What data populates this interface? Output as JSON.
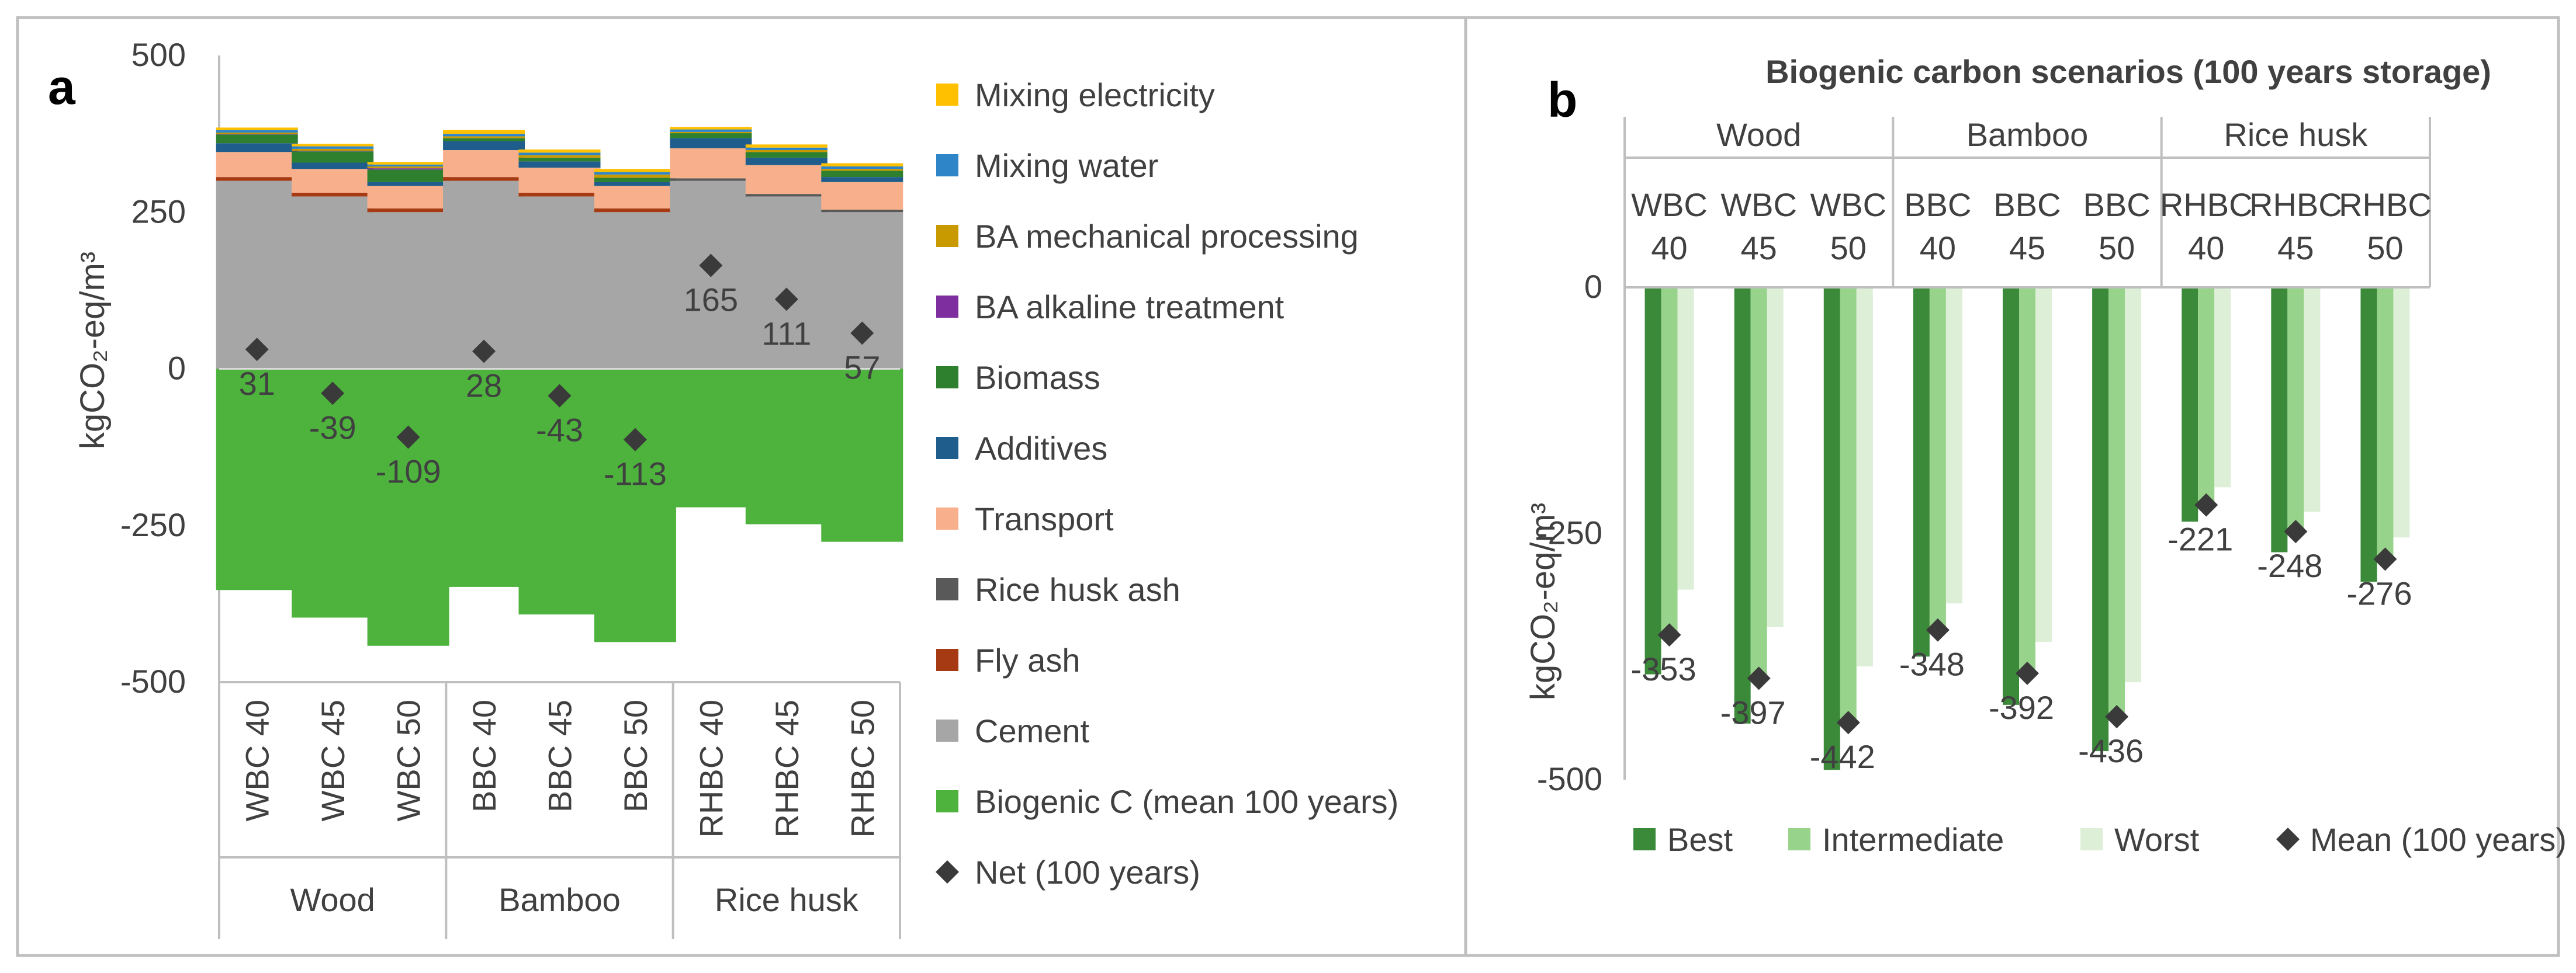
{
  "chart_data": [
    {
      "panel_label": "a",
      "type": "bar",
      "stacked": true,
      "title": "",
      "ylabel": "kgCO₂-eq/m³",
      "ylim": [
        -500,
        500
      ],
      "yticks": [
        -500,
        -250,
        0,
        250,
        500
      ],
      "yticklabels": [
        "-500",
        "-250",
        "0",
        "250",
        "500"
      ],
      "categories": [
        "WBC 40",
        "WBC 45",
        "WBC 50",
        "BBC 40",
        "BBC 45",
        "BBC 50",
        "RHBC 40",
        "RHBC 45",
        "RHBC 50"
      ],
      "groups": [
        {
          "name": "Wood",
          "count": 3
        },
        {
          "name": "Bamboo",
          "count": 3
        },
        {
          "name": "Rice husk",
          "count": 3
        }
      ],
      "series": [
        {
          "name": "Cement",
          "color": "#A6A6A6",
          "values": [
            300,
            275,
            250,
            300,
            275,
            250,
            300,
            275,
            250
          ]
        },
        {
          "name": "Fly ash",
          "color": "#A63A12",
          "values": [
            6,
            6,
            6,
            6,
            6,
            6,
            0,
            0,
            0
          ]
        },
        {
          "name": "Rice husk ash",
          "color": "#595959",
          "values": [
            0,
            0,
            0,
            0,
            0,
            0,
            4,
            4,
            4
          ]
        },
        {
          "name": "Transport",
          "color": "#F8B08C",
          "values": [
            40,
            38,
            36,
            43,
            40,
            36,
            48,
            46,
            44
          ]
        },
        {
          "name": "Additives",
          "color": "#1F5E8C",
          "values": [
            14,
            10,
            6,
            14,
            10,
            6,
            16,
            12,
            8
          ]
        },
        {
          "name": "Biomass",
          "color": "#2E7F2E",
          "values": [
            14,
            18,
            20,
            5,
            6,
            7,
            8,
            9,
            10
          ]
        },
        {
          "name": "BA alkaline treatment",
          "color": "#7E2E9E",
          "values": [
            1,
            1,
            2,
            0,
            0,
            0,
            0,
            0,
            0
          ]
        },
        {
          "name": "BA mechanical processing",
          "color": "#C99A00",
          "values": [
            2,
            3,
            3,
            3,
            4,
            5,
            2,
            3,
            3
          ]
        },
        {
          "name": "Mixing water",
          "color": "#2E86C8",
          "values": [
            4,
            4,
            3,
            4,
            4,
            4,
            4,
            4,
            4
          ]
        },
        {
          "name": "Mixing electricity",
          "color": "#FFC000",
          "values": [
            4,
            4,
            4,
            6,
            5,
            5,
            4,
            5,
            5
          ]
        },
        {
          "name": "Biogenic C (mean 100 years)",
          "color": "#4DB33D",
          "values": [
            -353,
            -397,
            -442,
            -348,
            -392,
            -436,
            -221,
            -248,
            -276
          ]
        }
      ],
      "net": {
        "name": "Net (100 years)",
        "values": [
          31,
          -39,
          -109,
          28,
          -43,
          -113,
          165,
          111,
          57
        ]
      },
      "legend_order": [
        "Mixing electricity",
        "Mixing water",
        "BA mechanical processing",
        "BA alkaline treatment",
        "Biomass",
        "Additives",
        "Transport",
        "Rice husk ash",
        "Fly ash",
        "Cement",
        "Biogenic C (mean 100 years)",
        "Net (100 years)"
      ],
      "legend_placement": "right"
    },
    {
      "panel_label": "b",
      "type": "bar",
      "title": "Biogenic carbon scenarios (100 years storage)",
      "ylabel": "kgCO₂-eq/m³",
      "ylim": [
        -500,
        0
      ],
      "yticks": [
        -500,
        -250,
        0
      ],
      "yticklabels": [
        "-500",
        "-250",
        "0"
      ],
      "groups": [
        {
          "name": "Wood",
          "categories": [
            "WBC\n40",
            "WBC\n45",
            "WBC\n50"
          ]
        },
        {
          "name": "Bamboo",
          "categories": [
            "BBC\n40",
            "BBC\n45",
            "BBC\n50"
          ]
        },
        {
          "name": "Rice husk",
          "categories": [
            "RHBC\n40",
            "RHBC\n45",
            "RHBC\n50"
          ]
        }
      ],
      "series": [
        {
          "name": "Best",
          "color": "#3B8A3A",
          "values": [
            -393,
            -443,
            -490,
            -375,
            -424,
            -471,
            -238,
            -269,
            -299
          ]
        },
        {
          "name": "Intermediate",
          "color": "#97D38A",
          "values": [
            -353,
            -397,
            -442,
            -348,
            -392,
            -436,
            -221,
            -248,
            -276
          ]
        },
        {
          "name": "Worst",
          "color": "#DDEFD7",
          "values": [
            -307,
            -345,
            -385,
            -321,
            -360,
            -401,
            -203,
            -228,
            -254
          ]
        }
      ],
      "mean": {
        "name": "Mean (100 years)",
        "values": [
          -353,
          -397,
          -442,
          -348,
          -392,
          -436,
          -221,
          -248,
          -276
        ]
      },
      "legend_placement": "bottom"
    }
  ]
}
